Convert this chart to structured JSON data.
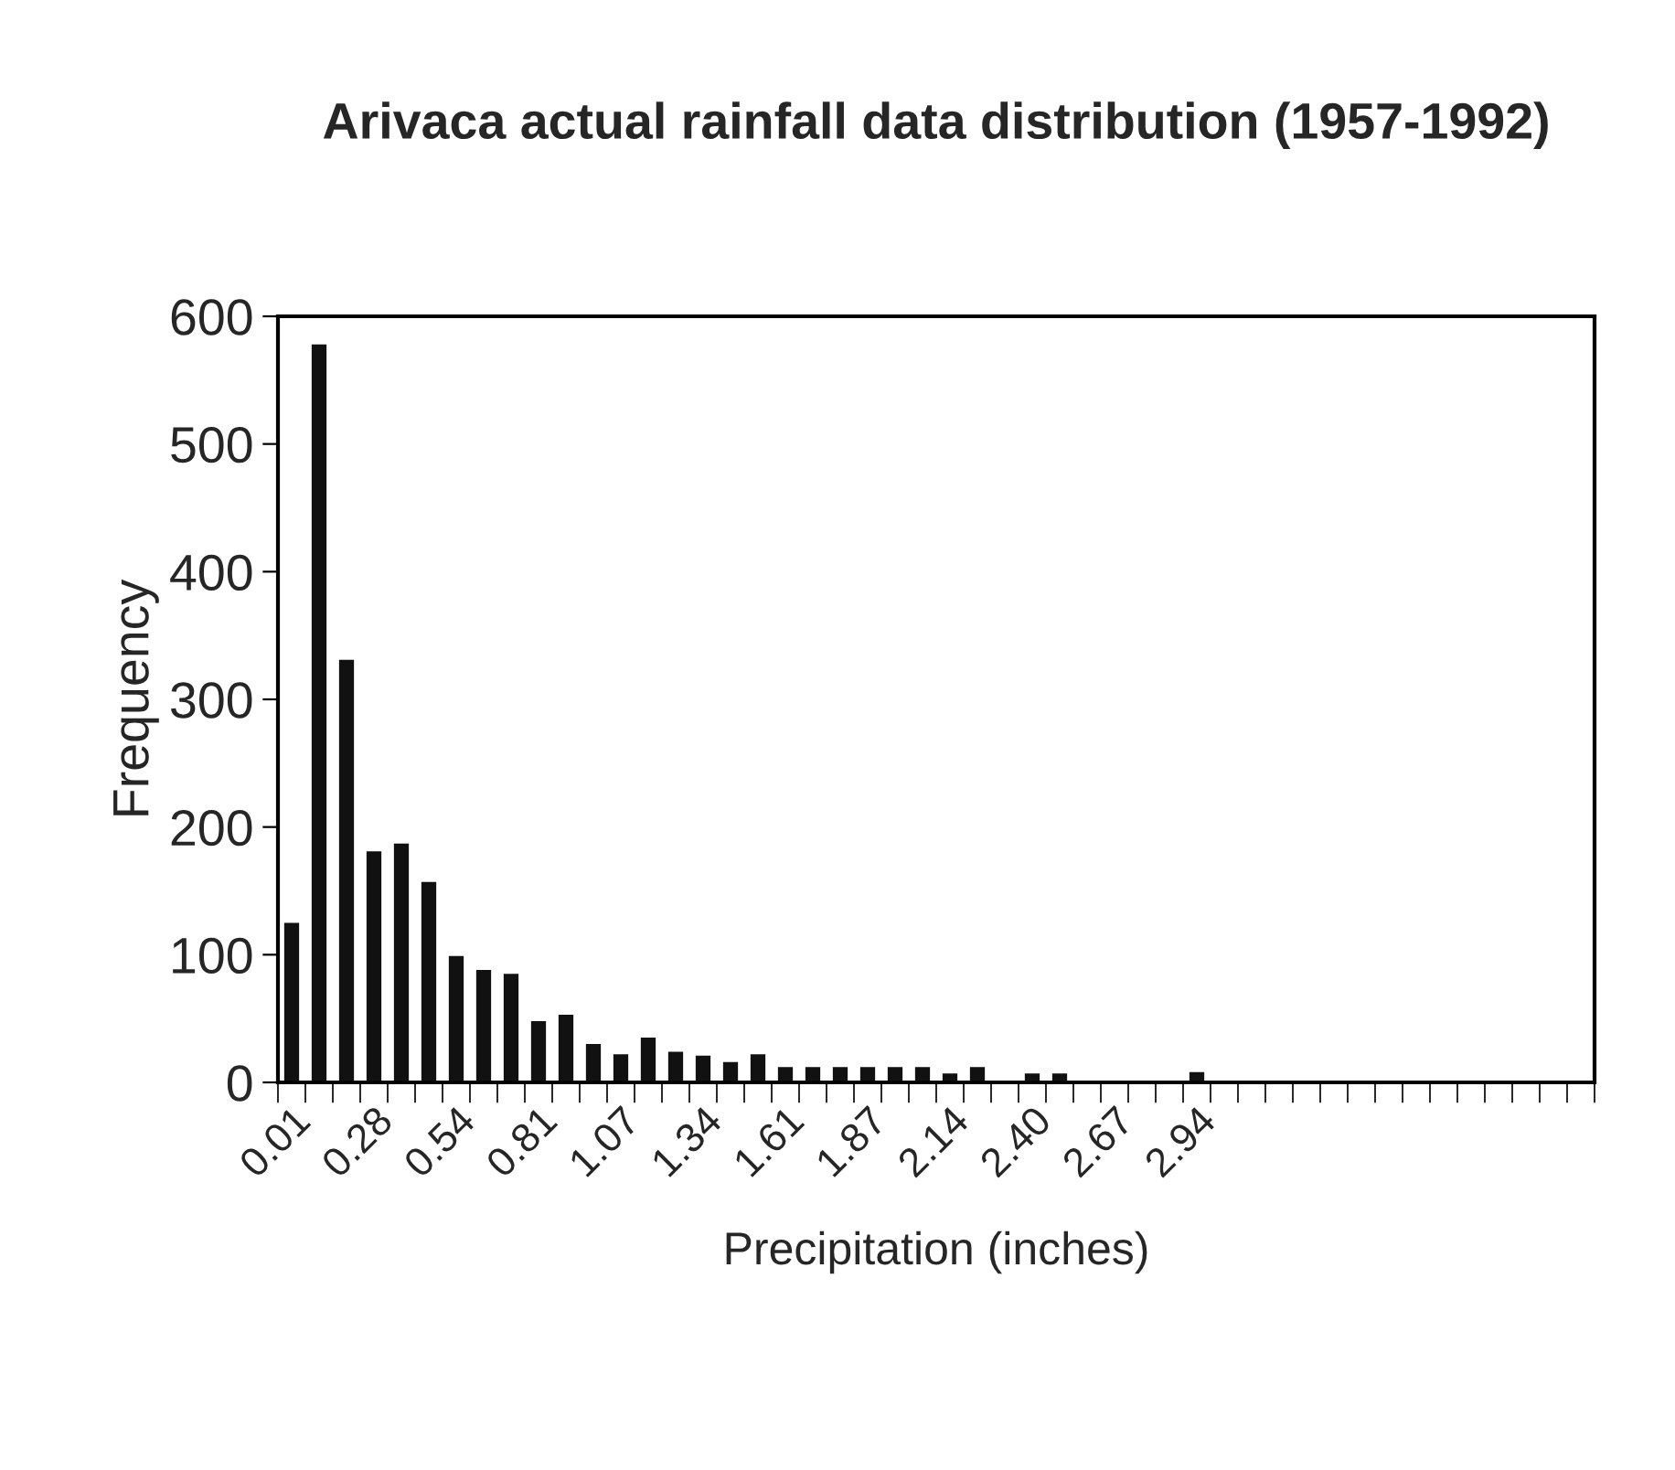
{
  "chart_data": {
    "type": "bar",
    "title": "Arivaca actual rainfall data distribution (1957-1992)",
    "xlabel": "Precipitation (inches)",
    "ylabel": "Frequency",
    "categories": [
      "0.01",
      null,
      null,
      "0.28",
      null,
      null,
      "0.54",
      null,
      null,
      "0.81",
      null,
      null,
      "1.07",
      null,
      null,
      "1.34",
      null,
      null,
      "1.61",
      null,
      null,
      "1.87",
      null,
      null,
      "2.14",
      null,
      null,
      "2.40",
      null,
      null,
      "2.67",
      null,
      null,
      "2.94",
      null,
      null,
      null,
      null,
      null,
      null,
      null,
      null,
      null,
      null,
      null,
      null,
      null,
      null
    ],
    "values": [
      124,
      577,
      330,
      180,
      186,
      156,
      98,
      87,
      84,
      47,
      52,
      29,
      21,
      34,
      23,
      20,
      15,
      21,
      11,
      11,
      11,
      11,
      11,
      11,
      6,
      11,
      0,
      6,
      6,
      0,
      0,
      0,
      0,
      7,
      0,
      0,
      0,
      0,
      0,
      0,
      0,
      0,
      0,
      0,
      0,
      0,
      0,
      0
    ],
    "color": "#111111",
    "ylim": [
      0,
      600
    ],
    "yticks": [
      0,
      100,
      200,
      300,
      400,
      500,
      600
    ],
    "grid": false,
    "legend": false
  }
}
